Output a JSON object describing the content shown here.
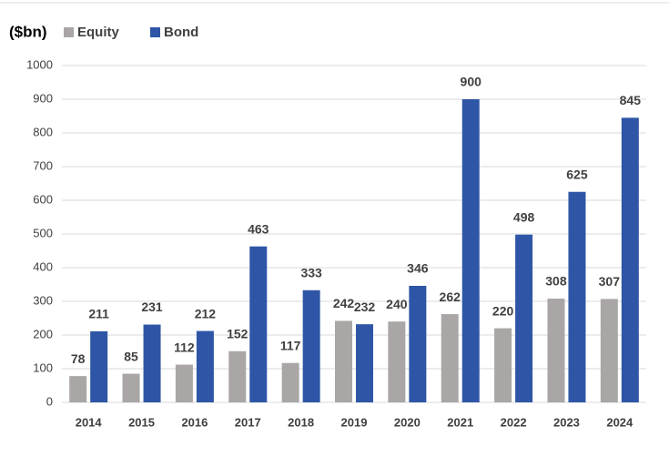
{
  "chart_data": {
    "type": "bar",
    "title": "($bn)",
    "categories": [
      "2014",
      "2015",
      "2016",
      "2017",
      "2018",
      "2019",
      "2020",
      "2021",
      "2022",
      "2023",
      "2024"
    ],
    "series": [
      {
        "name": "Equity",
        "color": "#aaa6a6",
        "values": [
          78,
          85,
          112,
          152,
          117,
          242,
          240,
          262,
          220,
          308,
          307
        ]
      },
      {
        "name": "Bond",
        "color": "#2f56a6",
        "values": [
          211,
          231,
          212,
          463,
          333,
          232,
          346,
          900,
          498,
          625,
          845
        ]
      }
    ],
    "ylim": [
      0,
      1000
    ],
    "yticks": [
      0,
      100,
      200,
      300,
      400,
      500,
      600,
      700,
      800,
      900,
      1000
    ],
    "grid": true
  }
}
